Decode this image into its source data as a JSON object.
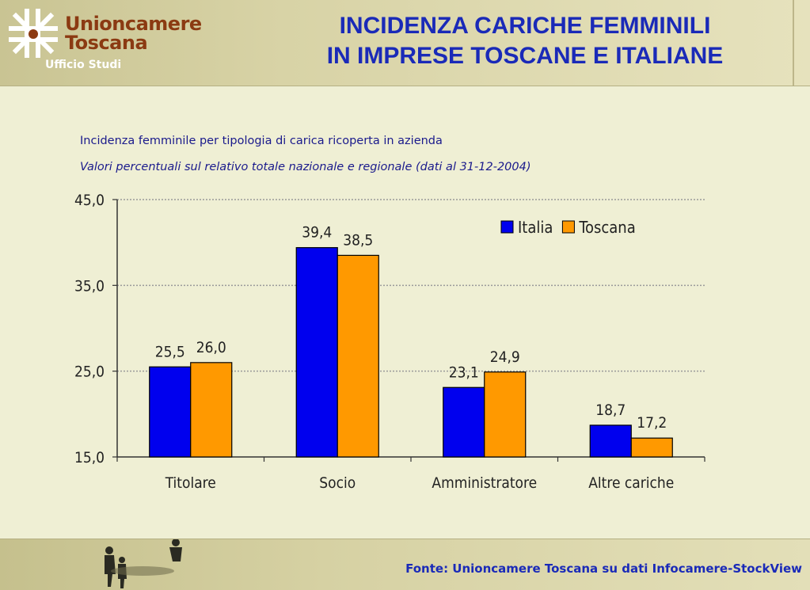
{
  "header": {
    "logo_line1": "Unioncamere",
    "logo_line2": "Toscana",
    "office": "Ufficio Studi",
    "title_line1": "INCIDENZA CARICHE FEMMINILI",
    "title_line2": "IN IMPRESE TOSCANE E ITALIANE",
    "logo_color": "#8b3a12",
    "title_color": "#1a2ab8"
  },
  "subtitle_line1": "Incidenza femminile per tipologia di carica ricoperta in azienda",
  "subtitle_line2": "Valori percentuali sul relativo totale nazionale e regionale (dati al 31-12-2004)",
  "chart_data": {
    "type": "bar",
    "categories": [
      "Titolare",
      "Socio",
      "Amministratore",
      "Altre cariche"
    ],
    "series": [
      {
        "name": "Italia",
        "values": [
          25.5,
          39.4,
          23.1,
          18.7
        ],
        "labels": [
          "25,5",
          "39,4",
          "23,1",
          "18,7"
        ],
        "color": "#0000ee"
      },
      {
        "name": "Toscana",
        "values": [
          26.0,
          38.5,
          24.9,
          17.2
        ],
        "labels": [
          "26,0",
          "38,5",
          "24,9",
          "17,2"
        ],
        "color": "#ff9900"
      }
    ],
    "yticks": [
      15.0,
      25.0,
      35.0,
      45.0
    ],
    "ytick_labels": [
      "15,0",
      "25,0",
      "35,0",
      "45,0"
    ],
    "ylim": [
      15,
      45
    ],
    "grid": true,
    "legend_position": "top-right"
  },
  "footer": {
    "source": "Fonte: Unioncamere Toscana su dati Infocamere-StockView"
  }
}
